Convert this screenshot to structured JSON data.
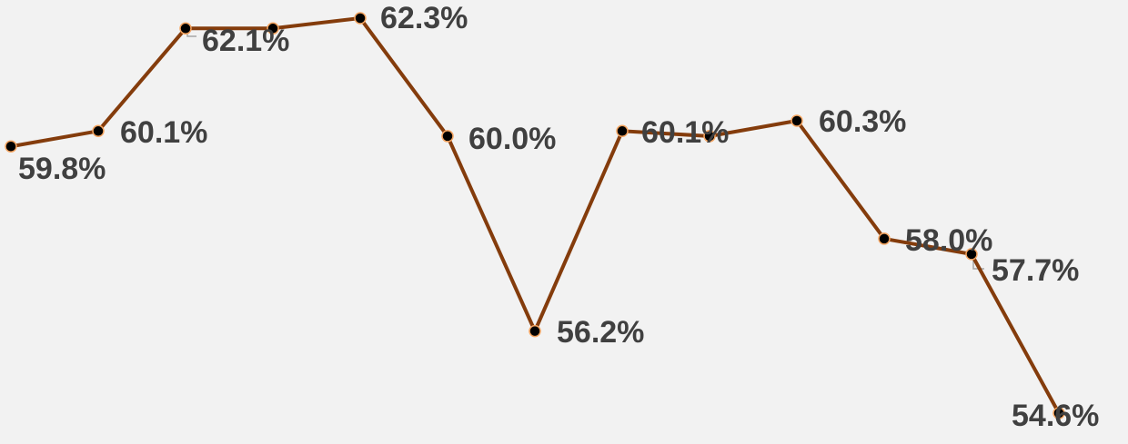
{
  "chart_data": {
    "type": "line",
    "series": [
      {
        "color": "#843c0c",
        "values": [
          59.8,
          60.1,
          62.1,
          62.1,
          62.3,
          60.0,
          56.2,
          60.1,
          60.0,
          60.3,
          58.0,
          57.7,
          54.6
        ],
        "value_labels": [
          "59.8%",
          "60.1%",
          "62.1%",
          null,
          "62.3%",
          "60.0%",
          "56.2%",
          "60.1%",
          null,
          "60.3%",
          "58.0%",
          "57.7%",
          "54.6%"
        ]
      }
    ]
  }
}
